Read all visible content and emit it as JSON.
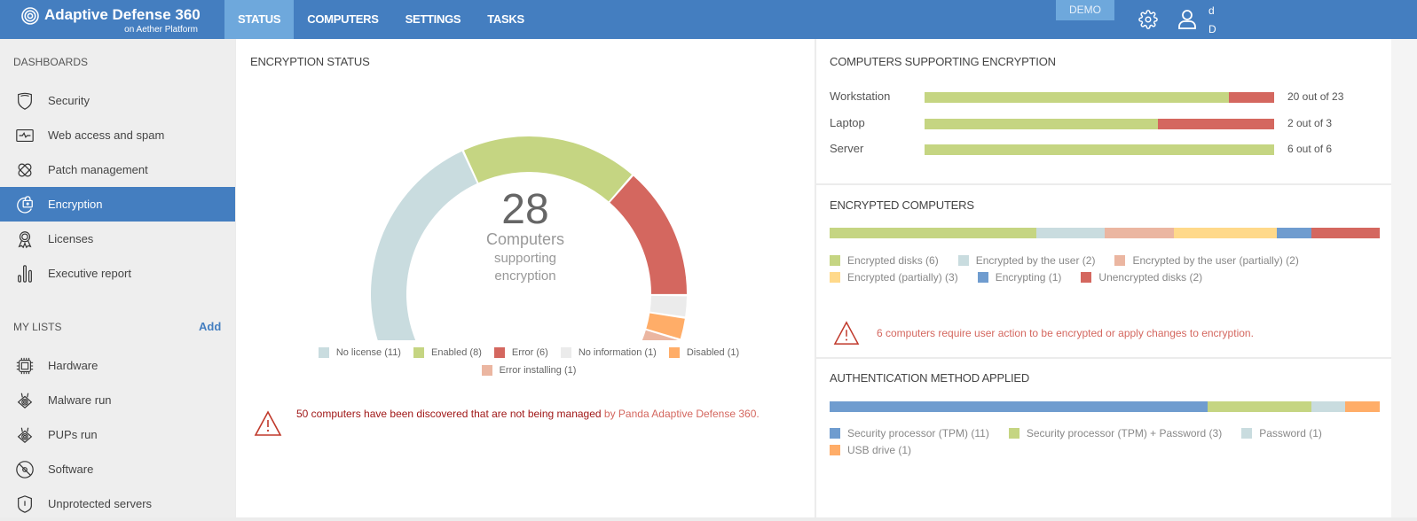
{
  "header": {
    "title": "Adaptive Defense 360",
    "subtitle": "on Aether Platform",
    "tabs": [
      {
        "label": "STATUS",
        "active": true
      },
      {
        "label": "COMPUTERS"
      },
      {
        "label": "SETTINGS"
      },
      {
        "label": "TASKS"
      }
    ],
    "demo": "DEMO",
    "user_line1": "d",
    "user_line2": "D"
  },
  "sidebar": {
    "dashboards_title": "DASHBOARDS",
    "dashboards": [
      {
        "label": "Security",
        "icon": "shield-icon"
      },
      {
        "label": "Web access and spam",
        "icon": "pulse-monitor-icon"
      },
      {
        "label": "Patch management",
        "icon": "patch-icon"
      },
      {
        "label": "Encryption",
        "icon": "encryption-icon",
        "active": true
      },
      {
        "label": "Licenses",
        "icon": "award-icon"
      },
      {
        "label": "Executive report",
        "icon": "bar-chart-icon"
      }
    ],
    "lists_title": "MY LISTS",
    "add_label": "Add",
    "lists": [
      {
        "label": "Hardware",
        "icon": "chip-icon"
      },
      {
        "label": "Malware run",
        "icon": "malware-icon"
      },
      {
        "label": "PUPs run",
        "icon": "pup-icon"
      },
      {
        "label": "Software",
        "icon": "disc-icon"
      },
      {
        "label": "Unprotected servers",
        "icon": "server-shield-icon"
      }
    ]
  },
  "encryption_status": {
    "title": "ENCRYPTION STATUS",
    "total": "28",
    "center_line1": "Computers",
    "center_line2": "supporting",
    "center_line3": "encryption",
    "warning_strong": "50 computers have been discovered that are not being managed",
    "warning_rest": " by Panda Adaptive Defense 360."
  },
  "chart_data": {
    "type": "pie",
    "variant": "gauge",
    "title": "ENCRYPTION STATUS",
    "categories": [
      "No license",
      "Enabled",
      "Error",
      "No information",
      "Disabled",
      "Error installing"
    ],
    "values": [
      11,
      8,
      6,
      1,
      1,
      1
    ],
    "legend_labels": [
      "No license (11)",
      "Enabled (8)",
      "Error (6)",
      "No information (1)",
      "Disabled (1)",
      "Error installing (1)"
    ],
    "colors": [
      "#c9dcdf",
      "#c5d582",
      "#d4675f",
      "#ebebeb",
      "#ffad68",
      "#ebb6a1"
    ],
    "legend": "bottom"
  },
  "supporting": {
    "title": "COMPUTERS SUPPORTING ENCRYPTION",
    "rows": [
      {
        "label": "Workstation",
        "supported": 20,
        "total": 23,
        "text": "20 out of 23"
      },
      {
        "label": "Laptop",
        "supported": 2,
        "total": 3,
        "text": "2 out of 3"
      },
      {
        "label": "Server",
        "supported": 6,
        "total": 6,
        "text": "6 out of 6"
      }
    ],
    "colors": {
      "supported": "#c5d582",
      "unsupported": "#d4675f"
    }
  },
  "encrypted": {
    "title": "ENCRYPTED COMPUTERS",
    "items": [
      {
        "label": "Encrypted disks (6)",
        "value": 6,
        "color": "#c5d582"
      },
      {
        "label": "Encrypted by the user (2)",
        "value": 2,
        "color": "#c9dcdf"
      },
      {
        "label": "Encrypted by the user (partially) (2)",
        "value": 2,
        "color": "#ebb6a1"
      },
      {
        "label": "Encrypted (partially) (3)",
        "value": 3,
        "color": "#ffd98a"
      },
      {
        "label": "Encrypting (1)",
        "value": 1,
        "color": "#6f9ccf"
      },
      {
        "label": "Unencrypted disks (2)",
        "value": 2,
        "color": "#d4675f"
      }
    ],
    "warning": "6 computers require user action to be encrypted or apply changes to encryption."
  },
  "auth": {
    "title": "AUTHENTICATION METHOD APPLIED",
    "items": [
      {
        "label": "Security processor (TPM) (11)",
        "value": 11,
        "color": "#6f9ccf"
      },
      {
        "label": "Security processor (TPM) + Password (3)",
        "value": 3,
        "color": "#c5d582"
      },
      {
        "label": "Password (1)",
        "value": 1,
        "color": "#c9dcdf"
      },
      {
        "label": "USB drive (1)",
        "value": 1,
        "color": "#ffad68"
      }
    ]
  }
}
